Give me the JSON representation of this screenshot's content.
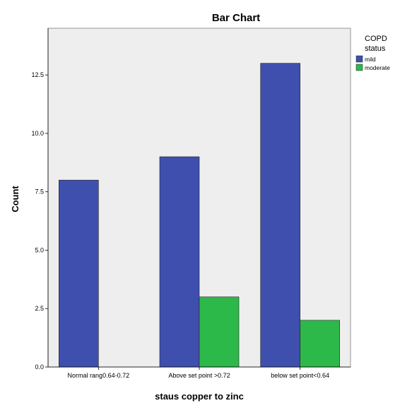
{
  "chart_data": {
    "type": "bar",
    "title": "Bar Chart",
    "xlabel": "staus copper to zinc",
    "ylabel": "Count",
    "categories": [
      "Normal rang0.64-0.72",
      "Above set point >0.72",
      "below set point<0.64"
    ],
    "series": [
      {
        "name": "mild",
        "values": [
          8,
          9,
          13
        ],
        "color": "#3f4fae"
      },
      {
        "name": "moderate",
        "values": [
          0,
          3,
          2
        ],
        "color": "#2db84a"
      }
    ],
    "ylim": [
      0,
      14.5
    ],
    "yticks": [
      "0.0",
      "2.5",
      "5.0",
      "7.5",
      "10.0",
      "12.5"
    ],
    "legend": {
      "title_line1": "COPD",
      "title_line2": "status",
      "placement": "top-right"
    },
    "grid": false
  },
  "colors": {
    "plot_bg": "#eeeeee",
    "axis": "#000000"
  }
}
